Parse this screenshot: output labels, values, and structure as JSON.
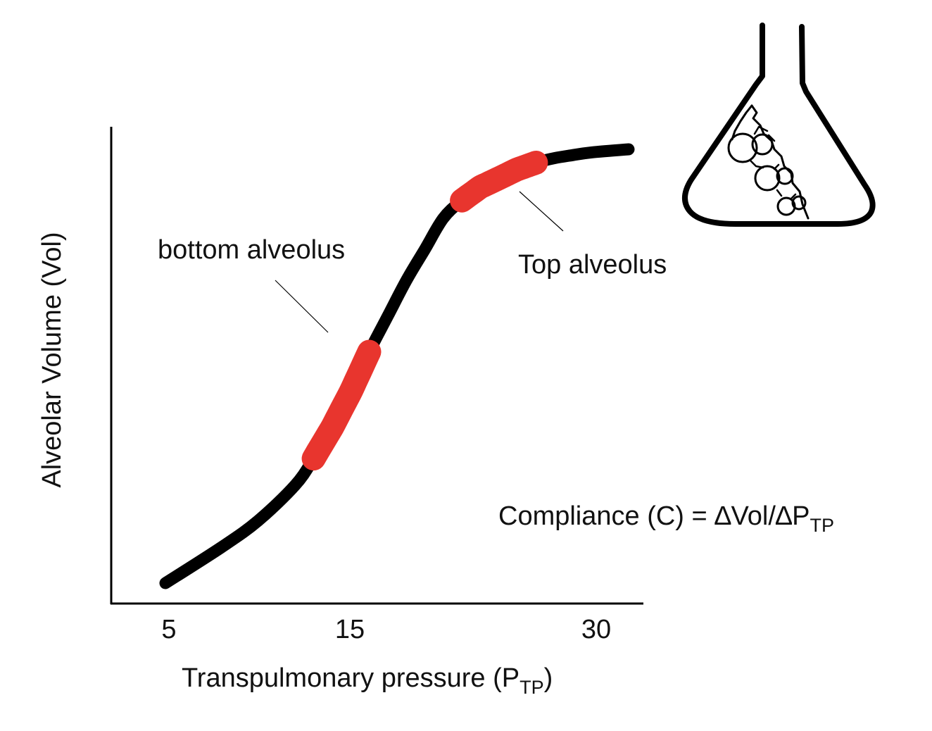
{
  "chart_data": {
    "type": "line",
    "xlabel": "Transpulmonary pressure (P",
    "xlabel_sub": "TP",
    "xlabel_end": ")",
    "ylabel": "Alveolar Volume (Vol)",
    "x_ticks": [
      "5",
      "15",
      "30"
    ],
    "series": [
      {
        "x": [
          5,
          8,
          10,
          12,
          13,
          14,
          15,
          16,
          17,
          18,
          19,
          20,
          21,
          22,
          23,
          24,
          25,
          26,
          27,
          28,
          30
        ],
        "y": [
          0,
          8,
          14,
          22,
          28,
          35,
          43,
          52,
          60,
          68,
          75,
          82,
          86,
          89,
          91,
          93,
          94.5,
          95.5,
          96.2,
          96.8,
          97.5
        ]
      }
    ],
    "highlights": [
      {
        "label": "bottom alveolus",
        "x_range": [
          13,
          16
        ],
        "color": "#e8352e"
      },
      {
        "label": "Top alveolus",
        "x_range": [
          21,
          25
        ],
        "color": "#e8352e"
      }
    ],
    "equation": {
      "text": "Compliance (C) = ∆Vol/∆P",
      "sub": "TP"
    },
    "grid": false,
    "legend": "none",
    "line_color": "#000000"
  }
}
